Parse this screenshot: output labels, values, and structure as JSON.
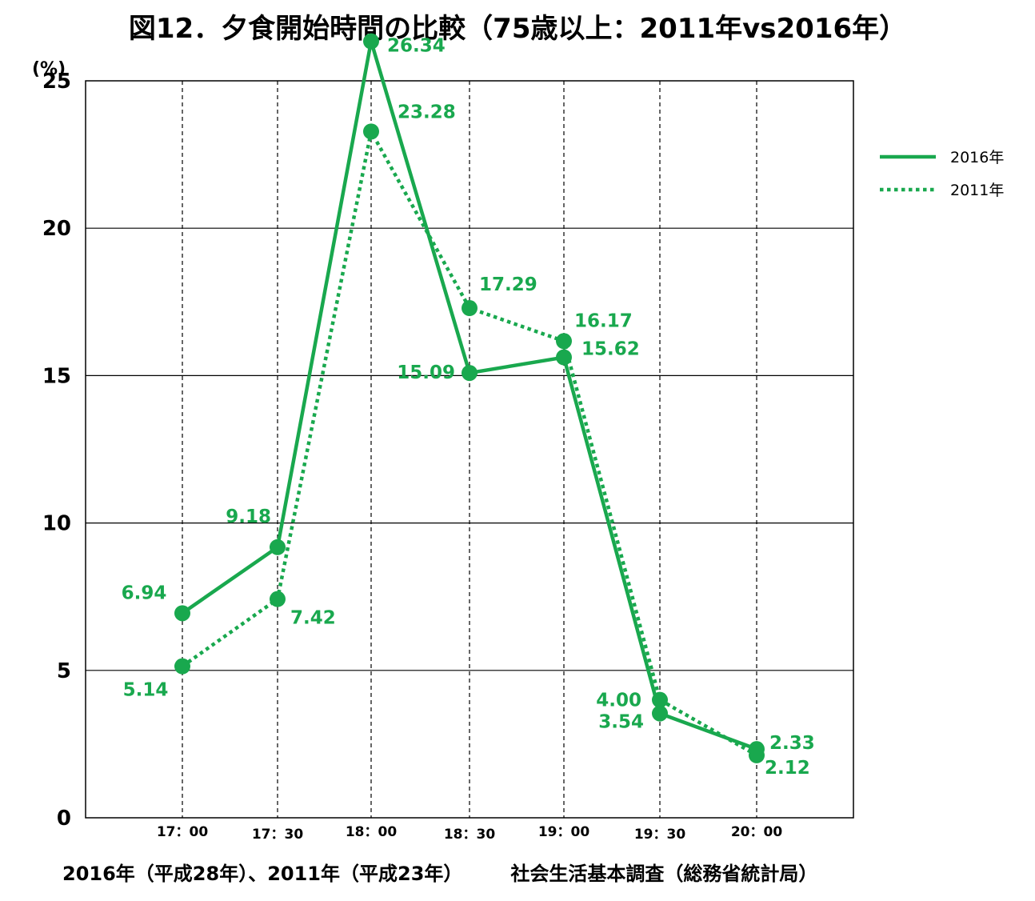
{
  "title": "図12．夕食開始時間の比較（75歳以上：2011年vs2016年）",
  "footer": {
    "left": "2016年（平成28年）、2011年（平成23年）",
    "right": "社会生活基本調査（総務省統計局）"
  },
  "colors": {
    "series": "#19a84e",
    "axis": "#000000",
    "grid": "#000000"
  },
  "chart_data": {
    "type": "line",
    "title": "図12．夕食開始時間の比較（75歳以上：2011年vs2016年）",
    "ylabel": "(%)",
    "xlabel": "",
    "ylim": [
      0,
      25
    ],
    "yticks": [
      0,
      5,
      10,
      15,
      20,
      25
    ],
    "categories": [
      "17：00",
      "17：30",
      "18：00",
      "18：30",
      "19：00",
      "19：30",
      "20：00"
    ],
    "grid": "horizontal solid, vertical dashed at categories",
    "legend_position": "right",
    "series": [
      {
        "name": "2016年",
        "style": "solid",
        "values": [
          6.94,
          9.18,
          26.34,
          15.09,
          15.62,
          3.54,
          2.33
        ]
      },
      {
        "name": "2011年",
        "style": "dotted",
        "values": [
          5.14,
          7.42,
          23.28,
          17.29,
          16.17,
          4.0,
          2.12
        ]
      }
    ]
  }
}
